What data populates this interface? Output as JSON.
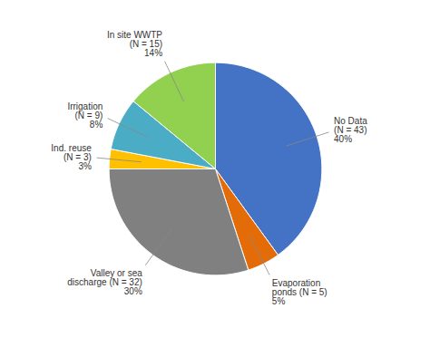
{
  "chart_data": {
    "type": "pie",
    "categories": [
      "No Data\n(N = 43)",
      "Evaporation\nponds (N = 5)",
      "Valley or sea\ndischarge (N = 32)",
      "Ind. reuse\n(N = 3)",
      "Irrigation\n(N = 9)",
      "In site WWTP\n(N = 15)"
    ],
    "values": [
      40,
      5,
      30,
      3,
      8,
      14
    ],
    "value_labels": [
      "40%",
      "5%",
      "30%",
      "3%",
      "8%",
      "14%"
    ],
    "colors": [
      "#4472C4",
      "#E36C09",
      "#808080",
      "#FFC000",
      "#4BACC6",
      "#92D050"
    ],
    "data_labels": true
  }
}
